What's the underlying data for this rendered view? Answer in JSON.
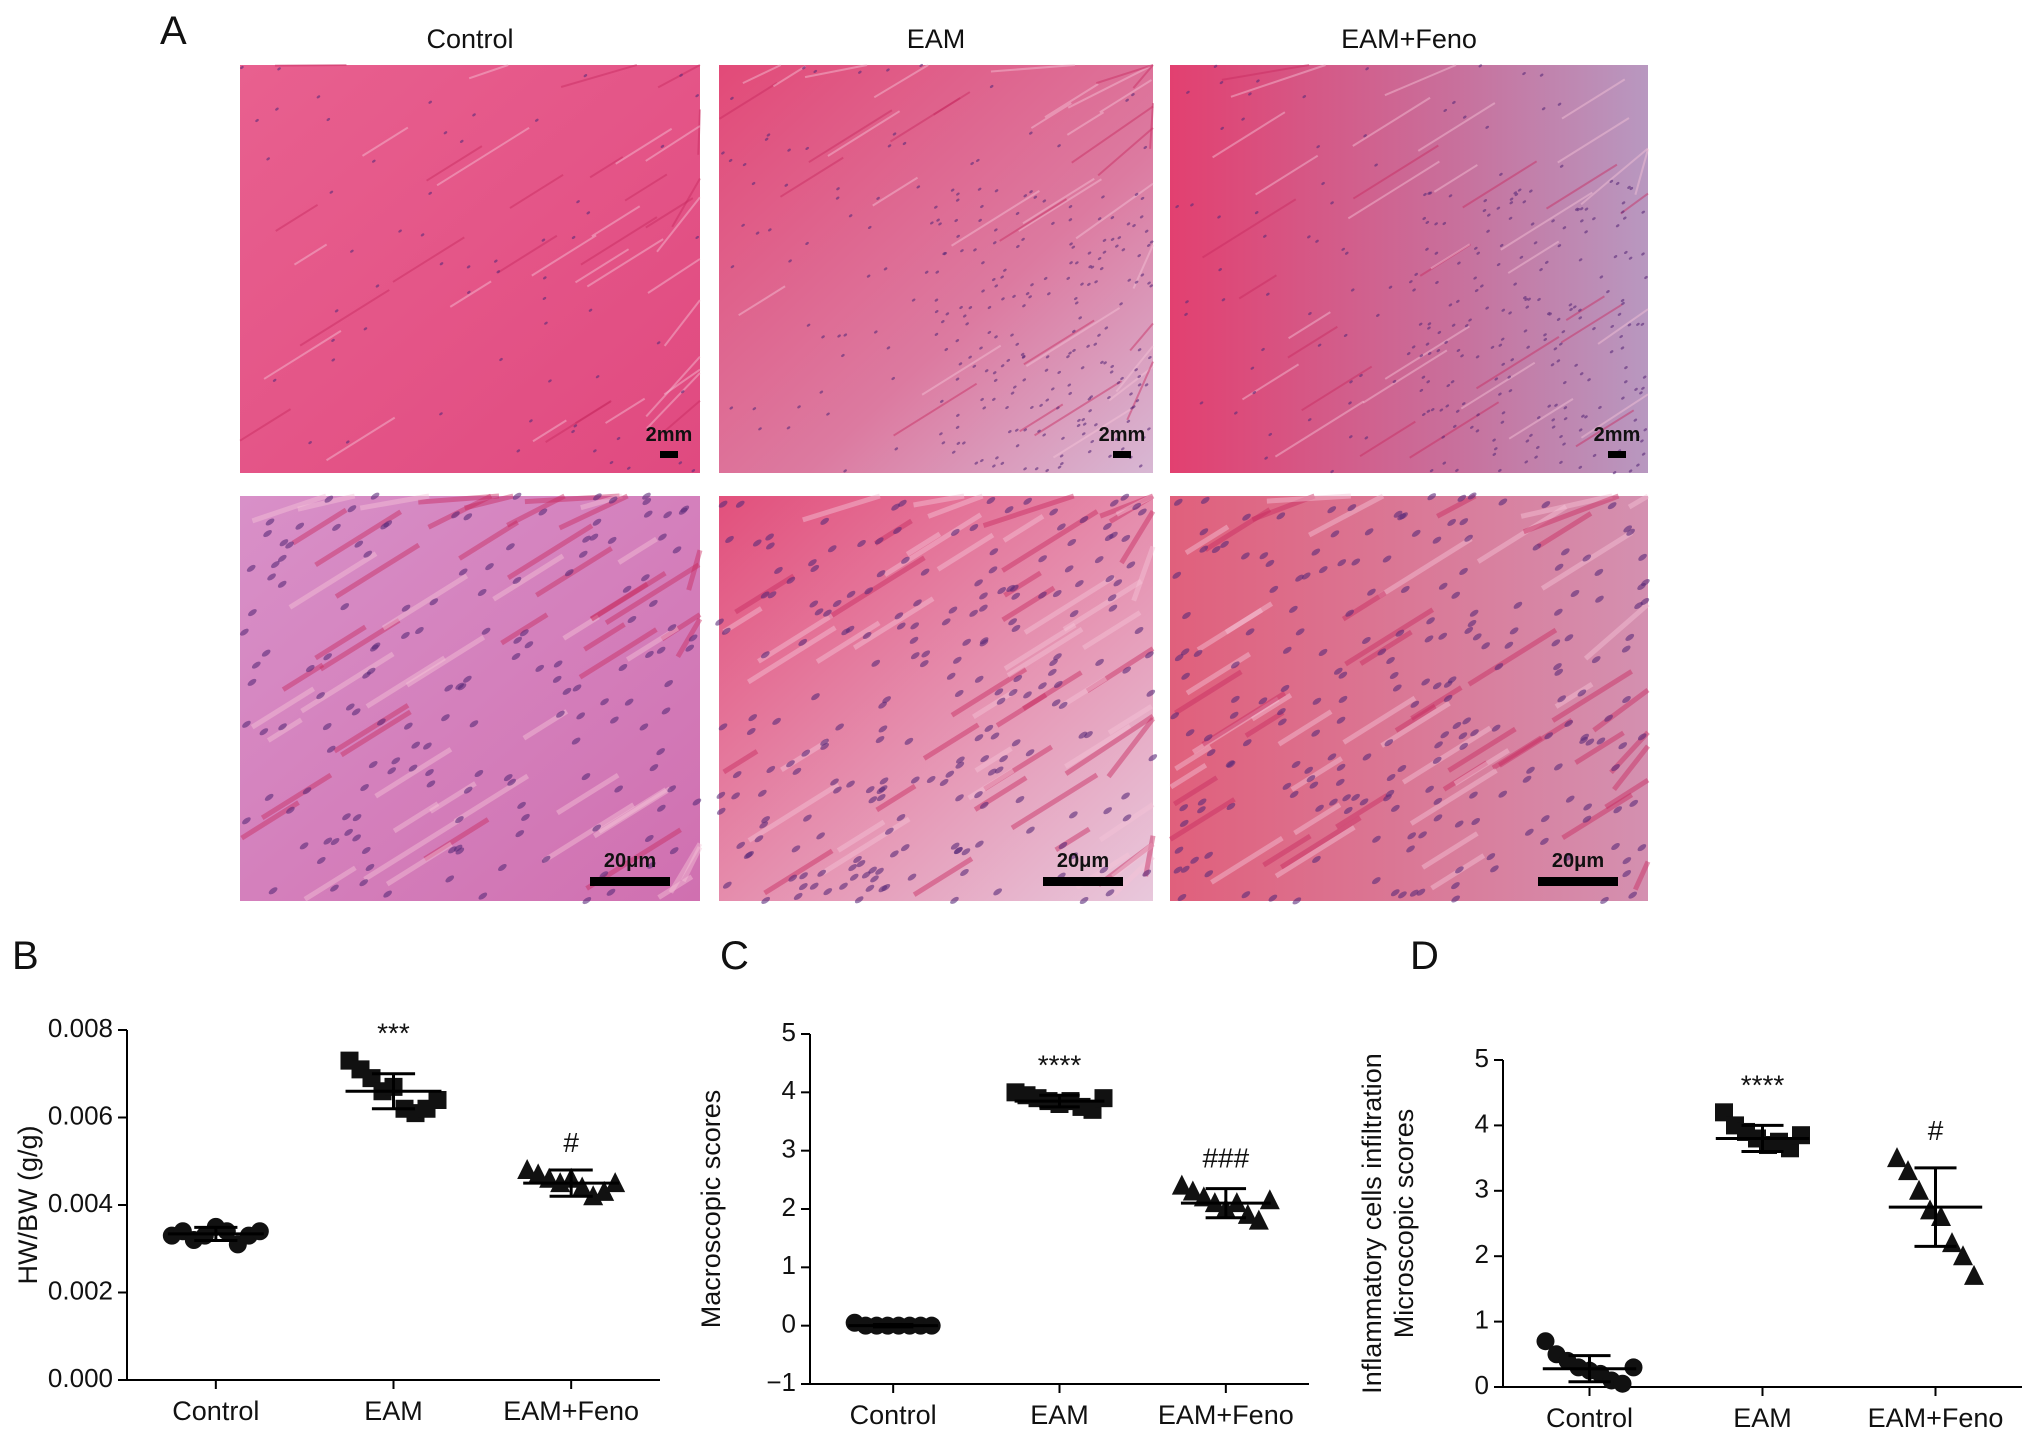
{
  "panel_a": {
    "label": "A",
    "columns": [
      "Control",
      "EAM",
      "EAM+Feno"
    ],
    "scale_bars": [
      "2mm",
      "2mm",
      "2mm",
      "20μm",
      "20μm",
      "20μm"
    ]
  },
  "chart_data": [
    {
      "type": "dot",
      "panel": "B",
      "ylabel": "HW/BW (g/g)",
      "categories": [
        "Control",
        "EAM",
        "EAM+Feno"
      ],
      "markers": [
        "circle",
        "square",
        "triangle"
      ],
      "color": "#111111",
      "values": [
        [
          0.0033,
          0.0034,
          0.0032,
          0.0033,
          0.0035,
          0.0034,
          0.0031,
          0.0033,
          0.0034
        ],
        [
          0.0073,
          0.0071,
          0.0069,
          0.0066,
          0.0067,
          0.0062,
          0.0061,
          0.0062,
          0.0064
        ],
        [
          0.0048,
          0.0047,
          0.0046,
          0.0045,
          0.0046,
          0.0044,
          0.0042,
          0.0043,
          0.0045
        ]
      ],
      "mean": [
        0.00334,
        0.0066,
        0.0045
      ],
      "sd": [
        0.00015,
        0.0004,
        0.0003
      ],
      "annotations": [
        null,
        "***",
        "#"
      ],
      "ylim": [
        0,
        0.008
      ],
      "yticks": [
        {
          "value": 0,
          "label": "0.000"
        },
        {
          "value": 0.002,
          "label": "0.002"
        },
        {
          "value": 0.004,
          "label": "0.004"
        },
        {
          "value": 0.006,
          "label": "0.006"
        },
        {
          "value": 0.008,
          "label": "0.008"
        }
      ]
    },
    {
      "type": "dot",
      "panel": "C",
      "ylabel": "Macroscopic scores",
      "categories": [
        "Control",
        "EAM",
        "EAM+Feno"
      ],
      "markers": [
        "circle",
        "square",
        "triangle"
      ],
      "color": "#111111",
      "values": [
        [
          0.05,
          0,
          0,
          0,
          0,
          0,
          0,
          0
        ],
        [
          4.0,
          3.95,
          3.9,
          3.85,
          3.8,
          3.85,
          3.75,
          3.7,
          3.9
        ],
        [
          2.4,
          2.3,
          2.2,
          2.1,
          2.0,
          2.1,
          1.9,
          1.8,
          2.15
        ]
      ],
      "mean": [
        0,
        3.85,
        2.1
      ],
      "sd": [
        0.02,
        0.1,
        0.25
      ],
      "annotations": [
        null,
        "****",
        "###"
      ],
      "ylim": [
        -1,
        5
      ],
      "yticks": [
        {
          "value": -1,
          "label": "−1"
        },
        0,
        1,
        2,
        3,
        4,
        5
      ]
    },
    {
      "type": "dot",
      "panel": "D",
      "ylabel": [
        "Inflammatory cells infiltration",
        "Microscopic scores"
      ],
      "categories": [
        "Control",
        "EAM",
        "EAM+Feno"
      ],
      "markers": [
        "circle",
        "square",
        "triangle"
      ],
      "color": "#111111",
      "values": [
        [
          0.7,
          0.5,
          0.4,
          0.3,
          0.25,
          0.2,
          0.1,
          0.05,
          0.3
        ],
        [
          4.2,
          4.0,
          3.9,
          3.8,
          3.7,
          3.75,
          3.65,
          3.85
        ],
        [
          3.5,
          3.3,
          3.0,
          2.7,
          2.6,
          2.2,
          2.0,
          1.7
        ]
      ],
      "mean": [
        0.28,
        3.8,
        2.75
      ],
      "sd": [
        0.2,
        0.2,
        0.6
      ],
      "annotations": [
        null,
        "****",
        "#"
      ],
      "ylim": [
        0,
        5
      ],
      "yticks": [
        0,
        1,
        2,
        3,
        4,
        5
      ]
    }
  ]
}
